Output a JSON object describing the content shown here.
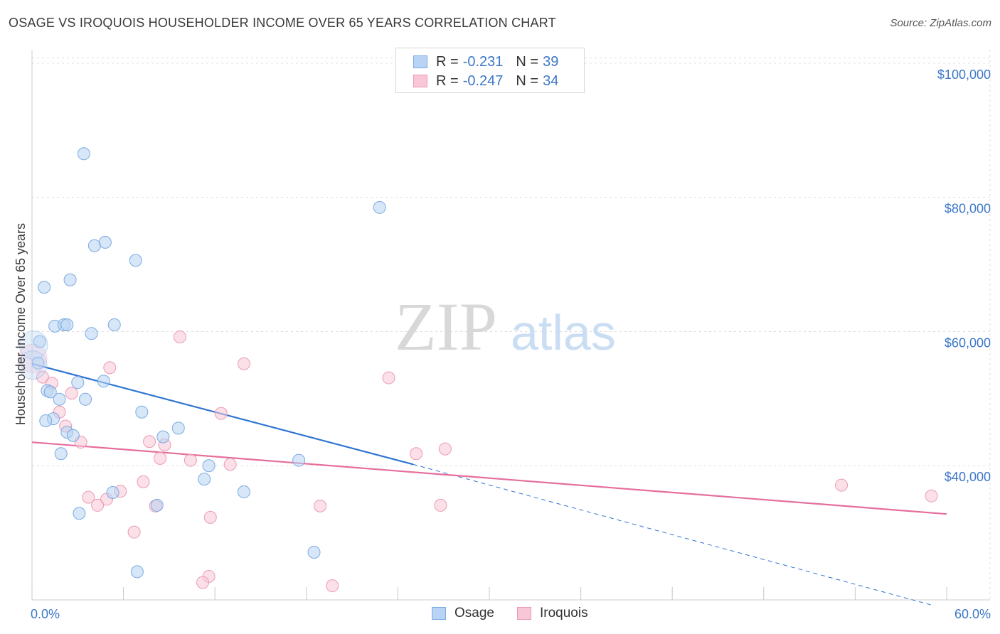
{
  "title": "OSAGE VS IROQUOIS HOUSEHOLDER INCOME OVER 65 YEARS CORRELATION CHART",
  "source": "Source: ZipAtlas.com",
  "watermark": {
    "zip": "ZIP",
    "atlas": "atlas"
  },
  "legend": {
    "osage": {
      "r_label": "R =",
      "r_value": "-0.231",
      "n_label": "N =",
      "n_value": "39"
    },
    "iroquois": {
      "r_label": "R =",
      "r_value": "-0.247",
      "n_label": "N =",
      "n_value": "34"
    }
  },
  "colors": {
    "osage_fill": "#b8d3f3",
    "osage_stroke": "#7aaae2",
    "osage_line": "#2f75d1",
    "iroquois_fill": "#f8c6d6",
    "iroquois_stroke": "#ec9ab5",
    "iroquois_line": "#e56e9c",
    "grid": "#dddddd",
    "tick_text": "#3d78c9"
  },
  "chart_data": {
    "type": "scatter",
    "title": "OSAGE VS IROQUOIS HOUSEHOLDER INCOME OVER 65 YEARS CORRELATION CHART",
    "xlabel": "",
    "ylabel": "Householder Income Over 65 years",
    "xlim": [
      0,
      60
    ],
    "ylim": [
      20000,
      102000
    ],
    "x_tick_labels": [
      "0.0%",
      "60.0%"
    ],
    "y_ticks": [
      40000,
      60000,
      80000,
      100000
    ],
    "y_tick_labels": [
      "$40,000",
      "$60,000",
      "$80,000",
      "$100,000"
    ],
    "legend": [
      "Osage",
      "Iroquois"
    ],
    "series": [
      {
        "name": "Osage",
        "points": [
          [
            3.4,
            86500
          ],
          [
            22.8,
            78500
          ],
          [
            4.1,
            72800
          ],
          [
            4.8,
            73300
          ],
          [
            6.8,
            70600
          ],
          [
            2.5,
            67700
          ],
          [
            0.8,
            66600
          ],
          [
            1.5,
            60800
          ],
          [
            2.1,
            61000
          ],
          [
            2.3,
            61000
          ],
          [
            5.4,
            61000
          ],
          [
            3.9,
            59700
          ],
          [
            0.5,
            58500
          ],
          [
            0.1,
            58000
          ],
          [
            0.4,
            55300
          ],
          [
            3.0,
            52400
          ],
          [
            4.7,
            52600
          ],
          [
            1.0,
            51200
          ],
          [
            1.2,
            51000
          ],
          [
            1.8,
            49900
          ],
          [
            3.5,
            49900
          ],
          [
            7.2,
            48000
          ],
          [
            1.4,
            47000
          ],
          [
            0.9,
            46700
          ],
          [
            9.6,
            45600
          ],
          [
            2.3,
            45000
          ],
          [
            2.7,
            44500
          ],
          [
            8.6,
            44300
          ],
          [
            1.9,
            41800
          ],
          [
            17.5,
            40800
          ],
          [
            11.6,
            40000
          ],
          [
            11.3,
            38000
          ],
          [
            13.9,
            36100
          ],
          [
            5.3,
            36000
          ],
          [
            8.2,
            34100
          ],
          [
            3.1,
            32900
          ],
          [
            18.5,
            27100
          ],
          [
            6.9,
            24200
          ],
          [
            0.05,
            55000
          ]
        ]
      },
      {
        "name": "Iroquois",
        "points": [
          [
            9.7,
            59200
          ],
          [
            13.9,
            55200
          ],
          [
            5.1,
            54600
          ],
          [
            23.4,
            53100
          ],
          [
            0.7,
            53200
          ],
          [
            1.3,
            52300
          ],
          [
            2.6,
            50800
          ],
          [
            1.8,
            48000
          ],
          [
            12.4,
            47800
          ],
          [
            2.2,
            45900
          ],
          [
            3.2,
            43500
          ],
          [
            7.7,
            43600
          ],
          [
            27.1,
            42500
          ],
          [
            8.7,
            43100
          ],
          [
            25.2,
            41800
          ],
          [
            8.4,
            41100
          ],
          [
            10.4,
            40800
          ],
          [
            13.0,
            40200
          ],
          [
            7.3,
            37600
          ],
          [
            5.8,
            36200
          ],
          [
            3.7,
            35300
          ],
          [
            4.9,
            35000
          ],
          [
            4.3,
            34100
          ],
          [
            8.1,
            34000
          ],
          [
            18.9,
            34000
          ],
          [
            26.8,
            34100
          ],
          [
            53.1,
            37100
          ],
          [
            59.0,
            35500
          ],
          [
            11.7,
            32300
          ],
          [
            6.7,
            30100
          ],
          [
            11.6,
            23500
          ],
          [
            11.2,
            22600
          ],
          [
            19.7,
            22100
          ],
          [
            0.05,
            56000
          ]
        ]
      }
    ],
    "trend_lines": [
      {
        "name": "Osage",
        "x": [
          0,
          25
        ],
        "y": [
          55200,
          40200
        ],
        "dashed_extension_to_x": 60
      },
      {
        "name": "Iroquois",
        "x": [
          0,
          60
        ],
        "y": [
          43500,
          32800
        ]
      }
    ]
  }
}
